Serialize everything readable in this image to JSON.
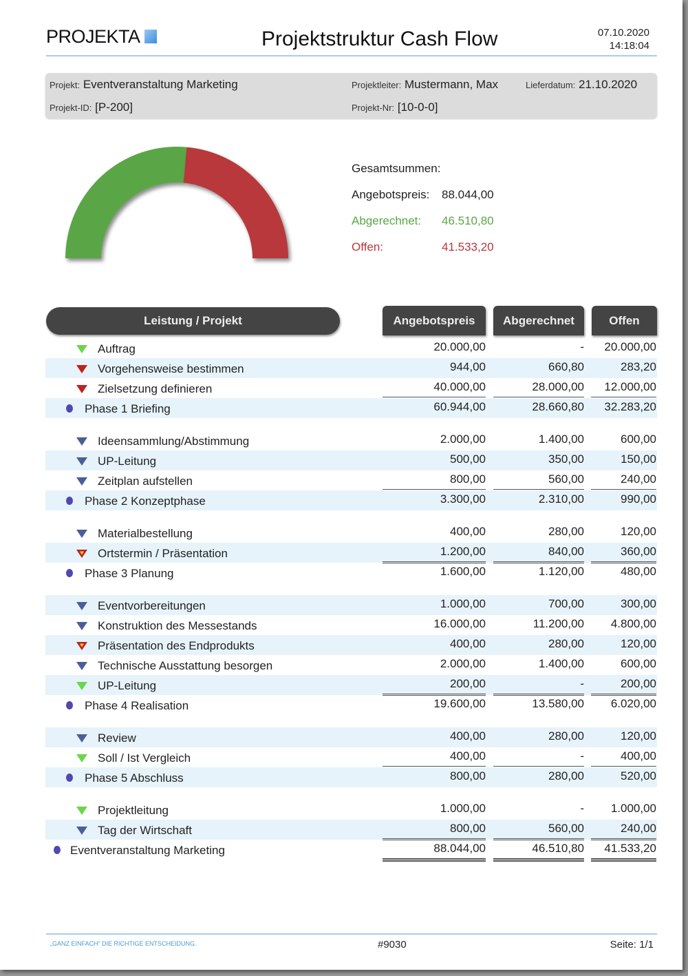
{
  "header": {
    "logo": "PROJEKTA",
    "title": "Projektstruktur Cash Flow",
    "date": "07.10.2020",
    "time": "14:18:04"
  },
  "info": {
    "projekt_label": "Projekt:",
    "projekt": "Eventveranstaltung Marketing",
    "projektleiter_label": "Projektleiter:",
    "projektleiter": "Mustermann, Max",
    "lieferdatum_label": "Lieferdatum:",
    "lieferdatum": "21.10.2020",
    "projekt_id_label": "Projekt-ID:",
    "projekt_id": "[P-200]",
    "projekt_nr_label": "Projekt-Nr:",
    "projekt_nr": "[10-0-0]"
  },
  "summary": {
    "title": "Gesamtsummen:",
    "angebot_label": "Angebotspreis:",
    "angebot": "88.044,00",
    "abgerechnet_label": "Abgerechnet:",
    "abgerechnet": "46.510,80",
    "offen_label": "Offen:",
    "offen": "41.533,20"
  },
  "gauge": {
    "abgerechnet": 46510.8,
    "offen": 41533.2,
    "colors": {
      "abgerechnet": "#5aa647",
      "offen": "#b8373a"
    }
  },
  "table": {
    "headers": [
      "Leistung / Projekt",
      "Angebotspreis",
      "Abgerechnet",
      "Offen"
    ],
    "rows": [
      {
        "type": "item",
        "icon": "green",
        "label": "Auftrag",
        "values": [
          "20.000,00",
          "-",
          "20.000,00"
        ],
        "shaded": false
      },
      {
        "type": "item",
        "icon": "red",
        "label": "Vorgehensweise bestimmen",
        "values": [
          "944,00",
          "660,80",
          "283,20"
        ],
        "shaded": true
      },
      {
        "type": "item",
        "icon": "red",
        "label": "Zielsetzung definieren",
        "values": [
          "40.000,00",
          "28.000,00",
          "12.000,00"
        ],
        "shaded": false
      },
      {
        "type": "phase",
        "label": "Phase 1 Briefing",
        "values": [
          "60.944,00",
          "28.660,80",
          "32.283,20"
        ],
        "shaded": true
      },
      {
        "type": "item",
        "icon": "blue",
        "label": "Ideensammlung/Abstimmung",
        "values": [
          "2.000,00",
          "1.400,00",
          "600,00"
        ],
        "shaded": false
      },
      {
        "type": "item",
        "icon": "blue",
        "label": "UP-Leitung",
        "values": [
          "500,00",
          "350,00",
          "150,00"
        ],
        "shaded": true
      },
      {
        "type": "item",
        "icon": "blue",
        "label": "Zeitplan aufstellen",
        "values": [
          "800,00",
          "560,00",
          "240,00"
        ],
        "shaded": false
      },
      {
        "type": "phase",
        "label": "Phase 2 Konzeptphase",
        "values": [
          "3.300,00",
          "2.310,00",
          "990,00"
        ],
        "shaded": true
      },
      {
        "type": "item",
        "icon": "blue",
        "label": "Materialbestellung",
        "values": [
          "400,00",
          "280,00",
          "120,00"
        ],
        "shaded": false
      },
      {
        "type": "item",
        "icon": "warn",
        "label": "Ortstermin / Präsentation",
        "values": [
          "1.200,00",
          "840,00",
          "360,00"
        ],
        "shaded": true
      },
      {
        "type": "phase",
        "label": "Phase 3 Planung",
        "values": [
          "1.600,00",
          "1.120,00",
          "480,00"
        ],
        "shaded": false
      },
      {
        "type": "item",
        "icon": "blue",
        "label": "Eventvorbereitungen",
        "values": [
          "1.000,00",
          "700,00",
          "300,00"
        ],
        "shaded": true
      },
      {
        "type": "item",
        "icon": "blue",
        "label": "Konstruktion des Messestands",
        "values": [
          "16.000,00",
          "11.200,00",
          "4.800,00"
        ],
        "shaded": false
      },
      {
        "type": "item",
        "icon": "warn",
        "label": "Präsentation des Endprodukts",
        "values": [
          "400,00",
          "280,00",
          "120,00"
        ],
        "shaded": true
      },
      {
        "type": "item",
        "icon": "blue",
        "label": "Technische Ausstattung besorgen",
        "values": [
          "2.000,00",
          "1.400,00",
          "600,00"
        ],
        "shaded": false
      },
      {
        "type": "item",
        "icon": "green",
        "label": "UP-Leitung",
        "values": [
          "200,00",
          "-",
          "200,00"
        ],
        "shaded": true
      },
      {
        "type": "phase",
        "label": "Phase 4 Realisation",
        "values": [
          "19.600,00",
          "13.580,00",
          "6.020,00"
        ],
        "shaded": false
      },
      {
        "type": "item",
        "icon": "blue",
        "label": "Review",
        "values": [
          "400,00",
          "280,00",
          "120,00"
        ],
        "shaded": true
      },
      {
        "type": "item",
        "icon": "green",
        "label": "Soll / Ist Vergleich",
        "values": [
          "400,00",
          "-",
          "400,00"
        ],
        "shaded": false
      },
      {
        "type": "phase",
        "label": "Phase 5 Abschluss",
        "values": [
          "800,00",
          "280,00",
          "520,00"
        ],
        "shaded": true
      },
      {
        "type": "item",
        "icon": "green",
        "label": "Projektleitung",
        "values": [
          "1.000,00",
          "-",
          "1.000,00"
        ],
        "shaded": false
      },
      {
        "type": "item",
        "icon": "blue",
        "label": "Tag der Wirtschaft",
        "values": [
          "800,00",
          "560,00",
          "240,00"
        ],
        "shaded": true
      },
      {
        "type": "total",
        "label": "Eventveranstaltung Marketing",
        "values": [
          "88.044,00",
          "46.510,80",
          "41.533,20"
        ],
        "shaded": false
      }
    ]
  },
  "footer": {
    "slogan": "„GANZ EINFACH“ DIE RICHTIGE ENTSCHEIDUNG.",
    "code": "#9030",
    "page": "Seite: 1/1"
  }
}
